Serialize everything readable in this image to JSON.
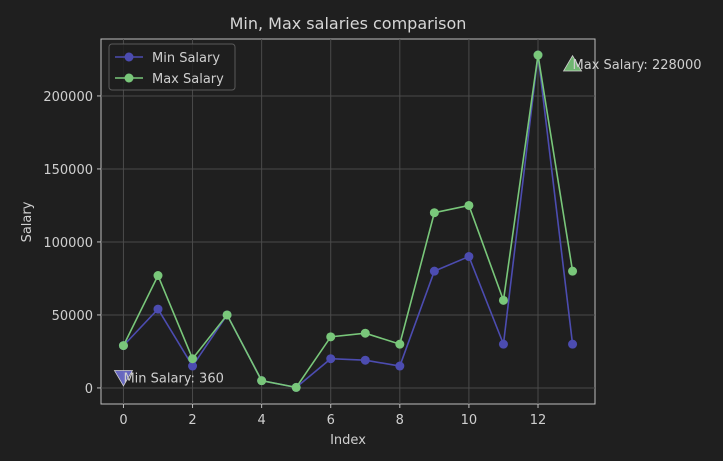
{
  "chart_data": {
    "type": "line",
    "title": "Min, Max salaries comparison",
    "xlabel": "Index",
    "ylabel": "Salary",
    "xlim": [
      -0.65,
      13.65
    ],
    "ylim": [
      -11000,
      239000
    ],
    "x": [
      0,
      1,
      2,
      3,
      4,
      5,
      6,
      7,
      8,
      9,
      10,
      11,
      12,
      13
    ],
    "xticks": [
      0,
      2,
      4,
      6,
      8,
      10,
      12
    ],
    "yticks": [
      0,
      50000,
      100000,
      150000,
      200000
    ],
    "grid": true,
    "legend_position": "top-left",
    "series": [
      {
        "name": "Min Salary",
        "color": "#4c4cb0",
        "values": [
          29000,
          54000,
          15000,
          50000,
          5000,
          360,
          20000,
          19000,
          15000,
          80000,
          90000,
          30000,
          228000,
          30000
        ]
      },
      {
        "name": "Max Salary",
        "color": "#79c77a",
        "values": [
          29000,
          77000,
          20000,
          50000,
          5000,
          360,
          35000,
          37500,
          30000,
          120000,
          125000,
          60000,
          228000,
          80000
        ]
      }
    ],
    "annotations": [
      {
        "text": "Min Salary: 360",
        "x": 0,
        "y": 7000,
        "marker": "triangle-down",
        "color": "#6f6fd0"
      },
      {
        "text": "Max Salary: 228000",
        "x": 13,
        "y": 222000,
        "marker": "triangle-up",
        "color": "#79c77a"
      }
    ]
  }
}
